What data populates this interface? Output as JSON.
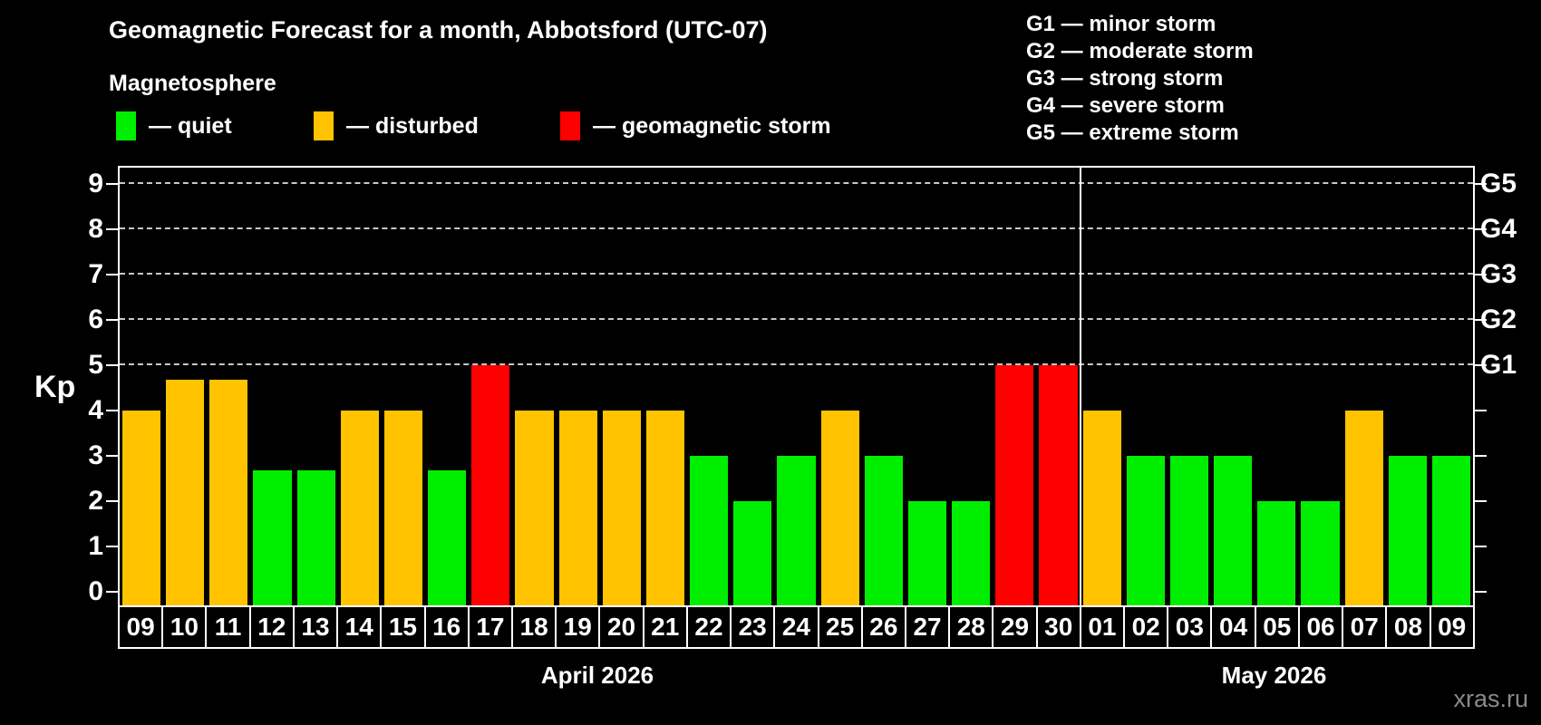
{
  "header": {
    "title": "Geomagnetic Forecast for a month, Abbotsford (UTC-07)",
    "subtitle": "Magnetosphere",
    "legend": [
      {
        "key": "quiet",
        "label": "— quiet",
        "color": "#00ee00"
      },
      {
        "key": "disturbed",
        "label": "— disturbed",
        "color": "#ffc300"
      },
      {
        "key": "storm",
        "label": "— geomagnetic storm",
        "color": "#ff0000"
      }
    ],
    "g_scale": [
      "G1 — minor storm",
      "G2 — moderate storm",
      "G3 — strong storm",
      "G4 — severe storm",
      "G5 — extreme storm"
    ]
  },
  "chart_data": {
    "type": "bar",
    "title": "Geomagnetic Forecast for a month, Abbotsford (UTC-07)",
    "ylabel": "Kp",
    "ylim": [
      -0.35,
      9.35
    ],
    "yticks": [
      0,
      1,
      2,
      3,
      4,
      5,
      6,
      7,
      8,
      9
    ],
    "gridlines": [
      5,
      6,
      7,
      8,
      9
    ],
    "right_axis_labels": [
      {
        "kp": 5,
        "label": "G1"
      },
      {
        "kp": 6,
        "label": "G2"
      },
      {
        "kp": 7,
        "label": "G3"
      },
      {
        "kp": 8,
        "label": "G4"
      },
      {
        "kp": 9,
        "label": "G5"
      }
    ],
    "state_colors": {
      "quiet": "#00ee00",
      "disturbed": "#ffc300",
      "storm": "#ff0000"
    },
    "months": [
      {
        "label": "April 2026",
        "count": 22
      },
      {
        "label": "May 2026",
        "count": 9
      }
    ],
    "bars": [
      {
        "day": "09",
        "kp": 4.0,
        "state": "disturbed"
      },
      {
        "day": "10",
        "kp": 4.67,
        "state": "disturbed"
      },
      {
        "day": "11",
        "kp": 4.67,
        "state": "disturbed"
      },
      {
        "day": "12",
        "kp": 2.67,
        "state": "quiet"
      },
      {
        "day": "13",
        "kp": 2.67,
        "state": "quiet"
      },
      {
        "day": "14",
        "kp": 4.0,
        "state": "disturbed"
      },
      {
        "day": "15",
        "kp": 4.0,
        "state": "disturbed"
      },
      {
        "day": "16",
        "kp": 2.67,
        "state": "quiet"
      },
      {
        "day": "17",
        "kp": 5.0,
        "state": "storm"
      },
      {
        "day": "18",
        "kp": 4.0,
        "state": "disturbed"
      },
      {
        "day": "19",
        "kp": 4.0,
        "state": "disturbed"
      },
      {
        "day": "20",
        "kp": 4.0,
        "state": "disturbed"
      },
      {
        "day": "21",
        "kp": 4.0,
        "state": "disturbed"
      },
      {
        "day": "22",
        "kp": 3.0,
        "state": "quiet"
      },
      {
        "day": "23",
        "kp": 2.0,
        "state": "quiet"
      },
      {
        "day": "24",
        "kp": 3.0,
        "state": "quiet"
      },
      {
        "day": "25",
        "kp": 4.0,
        "state": "disturbed"
      },
      {
        "day": "26",
        "kp": 3.0,
        "state": "quiet"
      },
      {
        "day": "27",
        "kp": 2.0,
        "state": "quiet"
      },
      {
        "day": "28",
        "kp": 2.0,
        "state": "quiet"
      },
      {
        "day": "29",
        "kp": 5.0,
        "state": "storm"
      },
      {
        "day": "30",
        "kp": 5.0,
        "state": "storm"
      },
      {
        "day": "01",
        "kp": 4.0,
        "state": "disturbed"
      },
      {
        "day": "02",
        "kp": 3.0,
        "state": "quiet"
      },
      {
        "day": "03",
        "kp": 3.0,
        "state": "quiet"
      },
      {
        "day": "04",
        "kp": 3.0,
        "state": "quiet"
      },
      {
        "day": "05",
        "kp": 2.0,
        "state": "quiet"
      },
      {
        "day": "06",
        "kp": 2.0,
        "state": "quiet"
      },
      {
        "day": "07",
        "kp": 4.0,
        "state": "disturbed"
      },
      {
        "day": "08",
        "kp": 3.0,
        "state": "quiet"
      },
      {
        "day": "09",
        "kp": 3.0,
        "state": "quiet"
      }
    ]
  },
  "footer": {
    "watermark": "xras.ru"
  }
}
